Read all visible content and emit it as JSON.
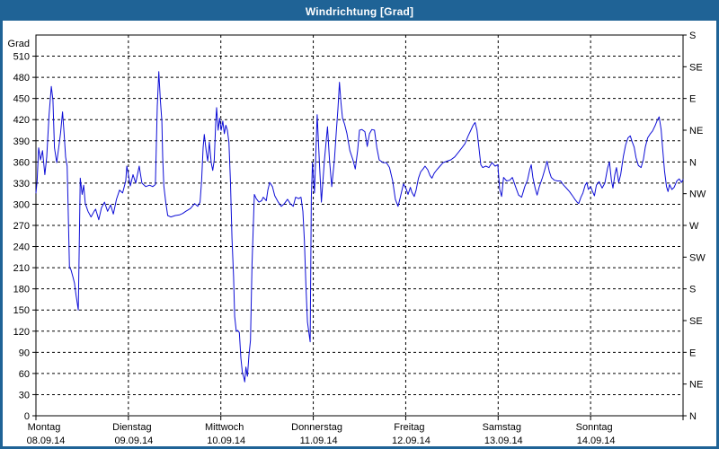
{
  "window": {
    "title": "Windrichtung [Grad]"
  },
  "colors": {
    "frame_blue": "#1f6396",
    "title_text": "#ffffff",
    "plot_bg": "#ffffff",
    "plot_frame": "#000000",
    "grid": "#000000",
    "axis_text": "#000000",
    "line": "#0d0dd6"
  },
  "chart_data": {
    "type": "line",
    "title": "Windrichtung [Grad]",
    "ylabel": "Grad",
    "ylim": [
      0,
      540
    ],
    "y_tick_step": 30,
    "y_ticks": [
      0,
      30,
      60,
      90,
      120,
      150,
      180,
      210,
      240,
      270,
      300,
      330,
      360,
      390,
      420,
      450,
      480,
      510
    ],
    "grid": "dashed",
    "legend": "none",
    "right_axis": {
      "unit_step_deg": 45,
      "labels_top_to_bottom": [
        "S",
        "SE",
        "E",
        "NE",
        "N",
        "NW",
        "W",
        "SW",
        "S",
        "SE",
        "E",
        "NE",
        "N"
      ]
    },
    "x_axis": {
      "hours_total": 168,
      "hours_per_day": 24,
      "days": [
        {
          "name": "Montag",
          "date": "08.09.14"
        },
        {
          "name": "Dienstag",
          "date": "09.09.14"
        },
        {
          "name": "Mittwoch",
          "date": "10.09.14"
        },
        {
          "name": "Donnerstag",
          "date": "11.09.14"
        },
        {
          "name": "Freitag",
          "date": "12.09.14"
        },
        {
          "name": "Samstag",
          "date": "13.09.14"
        },
        {
          "name": "Sonntag",
          "date": "14.09.14"
        }
      ]
    },
    "series": [
      {
        "name": "Windrichtung",
        "unit": "Grad",
        "color": "#0d0dd6",
        "points": [
          [
            0,
            316
          ],
          [
            0.3,
            333
          ],
          [
            0.7,
            380
          ],
          [
            1.2,
            363
          ],
          [
            1.7,
            376
          ],
          [
            2.3,
            342
          ],
          [
            2.8,
            367
          ],
          [
            3.4,
            427
          ],
          [
            4,
            467
          ],
          [
            4.4,
            448
          ],
          [
            4.8,
            380
          ],
          [
            5.4,
            359
          ],
          [
            5.9,
            380
          ],
          [
            6.4,
            401
          ],
          [
            6.9,
            431
          ],
          [
            7.3,
            401
          ],
          [
            7.7,
            367
          ],
          [
            8.1,
            354
          ],
          [
            8.3,
            307
          ],
          [
            8.7,
            210
          ],
          [
            9.1,
            207
          ],
          [
            9.6,
            197
          ],
          [
            10,
            188
          ],
          [
            10.4,
            171
          ],
          [
            11,
            150
          ],
          [
            11.5,
            337
          ],
          [
            12,
            314
          ],
          [
            12.4,
            327
          ],
          [
            12.8,
            301
          ],
          [
            13.5,
            290
          ],
          [
            14.3,
            282
          ],
          [
            15.1,
            290
          ],
          [
            15.5,
            293
          ],
          [
            16.3,
            278
          ],
          [
            17,
            295
          ],
          [
            17.8,
            303
          ],
          [
            18.6,
            290
          ],
          [
            19.4,
            299
          ],
          [
            20.1,
            286
          ],
          [
            20.9,
            307
          ],
          [
            21.7,
            320
          ],
          [
            22.5,
            316
          ],
          [
            23.3,
            333
          ],
          [
            23.6,
            354
          ],
          [
            24,
            342
          ],
          [
            24.5,
            326
          ],
          [
            25.2,
            342
          ],
          [
            25.9,
            330
          ],
          [
            26.8,
            354
          ],
          [
            27.5,
            330
          ],
          [
            28.5,
            325
          ],
          [
            29.5,
            327
          ],
          [
            30.3,
            325
          ],
          [
            31,
            328
          ],
          [
            31.5,
            439
          ],
          [
            31.9,
            488
          ],
          [
            32.3,
            448
          ],
          [
            32.7,
            418
          ],
          [
            32.9,
            367
          ],
          [
            33.2,
            326
          ],
          [
            33.7,
            303
          ],
          [
            34.2,
            284
          ],
          [
            35,
            282
          ],
          [
            36.2,
            284
          ],
          [
            37.3,
            285
          ],
          [
            38.1,
            287
          ],
          [
            38.9,
            290
          ],
          [
            40.1,
            294
          ],
          [
            41.2,
            301
          ],
          [
            42,
            297
          ],
          [
            42.6,
            303
          ],
          [
            43,
            333
          ],
          [
            43.4,
            380
          ],
          [
            43.7,
            399
          ],
          [
            44.2,
            376
          ],
          [
            44.6,
            361
          ],
          [
            45,
            388
          ],
          [
            45.5,
            359
          ],
          [
            45.9,
            348
          ],
          [
            46.3,
            363
          ],
          [
            46.7,
            418
          ],
          [
            46.9,
            437
          ],
          [
            47.3,
            405
          ],
          [
            47.7,
            422
          ],
          [
            48.1,
            405
          ],
          [
            48.5,
            418
          ],
          [
            48.9,
            400
          ],
          [
            49.3,
            412
          ],
          [
            49.7,
            405
          ],
          [
            50.1,
            388
          ],
          [
            50.5,
            333
          ],
          [
            50.9,
            252
          ],
          [
            51.3,
            197
          ],
          [
            51.6,
            141
          ],
          [
            52,
            120
          ],
          [
            52.4,
            121
          ],
          [
            52.8,
            118
          ],
          [
            53.2,
            82
          ],
          [
            53.6,
            61
          ],
          [
            54,
            54
          ],
          [
            54.2,
            48
          ],
          [
            54.5,
            69
          ],
          [
            54.9,
            56
          ],
          [
            55.3,
            86
          ],
          [
            55.7,
            107
          ],
          [
            56.1,
            214
          ],
          [
            56.7,
            314
          ],
          [
            57.2,
            308
          ],
          [
            57.9,
            303
          ],
          [
            58.6,
            305
          ],
          [
            59,
            310
          ],
          [
            59.8,
            305
          ],
          [
            60.2,
            320
          ],
          [
            60.7,
            331
          ],
          [
            61.4,
            325
          ],
          [
            62,
            312
          ],
          [
            62.9,
            303
          ],
          [
            63.7,
            297
          ],
          [
            64.5,
            301
          ],
          [
            65.3,
            307
          ],
          [
            66,
            301
          ],
          [
            66.8,
            297
          ],
          [
            67.4,
            310
          ],
          [
            68.2,
            308
          ],
          [
            68.8,
            310
          ],
          [
            69.3,
            290
          ],
          [
            69.7,
            248
          ],
          [
            70.1,
            184
          ],
          [
            70.5,
            133
          ],
          [
            70.9,
            116
          ],
          [
            71.2,
            105
          ],
          [
            71.5,
            310
          ],
          [
            71.8,
            359
          ],
          [
            72.3,
            316
          ],
          [
            73,
            427
          ],
          [
            73.6,
            359
          ],
          [
            74.1,
            303
          ],
          [
            74.9,
            363
          ],
          [
            75.7,
            410
          ],
          [
            76.2,
            363
          ],
          [
            76.8,
            325
          ],
          [
            77.5,
            363
          ],
          [
            78,
            405
          ],
          [
            78.4,
            435
          ],
          [
            78.8,
            473
          ],
          [
            79.2,
            444
          ],
          [
            79.6,
            422
          ],
          [
            80.1,
            414
          ],
          [
            80.7,
            401
          ],
          [
            81.5,
            376
          ],
          [
            82.3,
            363
          ],
          [
            82.9,
            350
          ],
          [
            83.5,
            376
          ],
          [
            84,
            405
          ],
          [
            84.6,
            406
          ],
          [
            85.4,
            403
          ],
          [
            86,
            382
          ],
          [
            86.6,
            400
          ],
          [
            87.2,
            406
          ],
          [
            87.9,
            405
          ],
          [
            88.5,
            380
          ],
          [
            89.1,
            363
          ],
          [
            90.1,
            359
          ],
          [
            91,
            359
          ],
          [
            91.8,
            352
          ],
          [
            92.6,
            333
          ],
          [
            93.3,
            307
          ],
          [
            94,
            297
          ],
          [
            94.6,
            310
          ],
          [
            95.4,
            329
          ],
          [
            96.1,
            322
          ],
          [
            96.6,
            314
          ],
          [
            97.2,
            324
          ],
          [
            97.6,
            317
          ],
          [
            98.2,
            311
          ],
          [
            98.7,
            320
          ],
          [
            99.3,
            337
          ],
          [
            99.9,
            346
          ],
          [
            100.5,
            350
          ],
          [
            101,
            354
          ],
          [
            101.7,
            349
          ],
          [
            102.3,
            341
          ],
          [
            102.8,
            337
          ],
          [
            103.4,
            344
          ],
          [
            104.1,
            349
          ],
          [
            104.9,
            354
          ],
          [
            105.7,
            359
          ],
          [
            106.7,
            361
          ],
          [
            107.7,
            363
          ],
          [
            108.7,
            367
          ],
          [
            109.6,
            373
          ],
          [
            110.6,
            380
          ],
          [
            111.4,
            386
          ],
          [
            112.2,
            397
          ],
          [
            112.9,
            405
          ],
          [
            113.5,
            412
          ],
          [
            114,
            416
          ],
          [
            114.5,
            405
          ],
          [
            115,
            380
          ],
          [
            115.5,
            356
          ],
          [
            116,
            352
          ],
          [
            116.8,
            354
          ],
          [
            117.6,
            352
          ],
          [
            118.4,
            359
          ],
          [
            119.2,
            354
          ],
          [
            119.9,
            356
          ],
          [
            120.4,
            321
          ],
          [
            120.9,
            311
          ],
          [
            121.4,
            338
          ],
          [
            122.2,
            333
          ],
          [
            123,
            334
          ],
          [
            123.7,
            338
          ],
          [
            124.5,
            325
          ],
          [
            125.3,
            313
          ],
          [
            126.1,
            310
          ],
          [
            126.9,
            325
          ],
          [
            127.6,
            334
          ],
          [
            128.2,
            349
          ],
          [
            128.6,
            356
          ],
          [
            129,
            338
          ],
          [
            129.6,
            323
          ],
          [
            130.1,
            313
          ],
          [
            130.7,
            325
          ],
          [
            131.5,
            338
          ],
          [
            132.1,
            349
          ],
          [
            132.7,
            361
          ],
          [
            133.3,
            346
          ],
          [
            133.8,
            338
          ],
          [
            134.6,
            334
          ],
          [
            135.4,
            333
          ],
          [
            136.2,
            333
          ],
          [
            137,
            327
          ],
          [
            137.7,
            323
          ],
          [
            138.5,
            318
          ],
          [
            139.3,
            312
          ],
          [
            139.9,
            307
          ],
          [
            140.5,
            303
          ],
          [
            140.9,
            301
          ],
          [
            141.5,
            310
          ],
          [
            142,
            316
          ],
          [
            142.6,
            327
          ],
          [
            143,
            331
          ],
          [
            143.4,
            321
          ],
          [
            144,
            325
          ],
          [
            144.5,
            318
          ],
          [
            145,
            312
          ],
          [
            145.5,
            327
          ],
          [
            146.2,
            332
          ],
          [
            147,
            323
          ],
          [
            147.7,
            330
          ],
          [
            148.4,
            351
          ],
          [
            148.9,
            360
          ],
          [
            149.4,
            334
          ],
          [
            149.8,
            323
          ],
          [
            150.3,
            342
          ],
          [
            150.7,
            352
          ],
          [
            151.3,
            331
          ],
          [
            151.8,
            342
          ],
          [
            152.5,
            368
          ],
          [
            153.1,
            384
          ],
          [
            153.7,
            394
          ],
          [
            154.3,
            397
          ],
          [
            154.7,
            390
          ],
          [
            155.3,
            381
          ],
          [
            155.8,
            366
          ],
          [
            156.4,
            355
          ],
          [
            157.1,
            352
          ],
          [
            157.7,
            364
          ],
          [
            158.2,
            381
          ],
          [
            158.8,
            394
          ],
          [
            159.5,
            400
          ],
          [
            160.1,
            404
          ],
          [
            160.8,
            412
          ],
          [
            161.3,
            419
          ],
          [
            161.8,
            424
          ],
          [
            162.3,
            406
          ],
          [
            162.7,
            379
          ],
          [
            163.2,
            347
          ],
          [
            163.7,
            325
          ],
          [
            164.1,
            318
          ],
          [
            164.5,
            328
          ],
          [
            165.1,
            321
          ],
          [
            165.7,
            324
          ],
          [
            166.4,
            333
          ],
          [
            167,
            336
          ],
          [
            167.6,
            331
          ],
          [
            168,
            335
          ]
        ]
      }
    ]
  }
}
